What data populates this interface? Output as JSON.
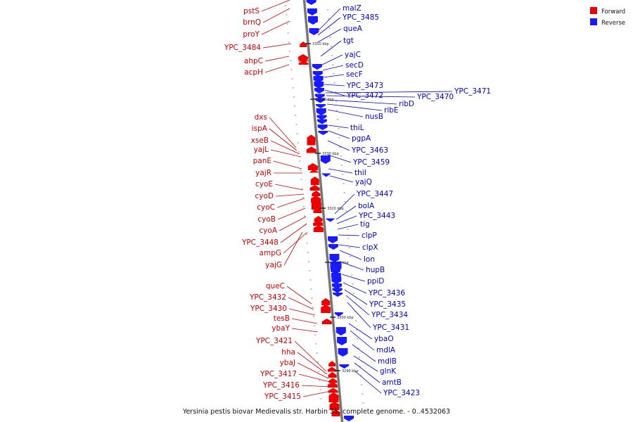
{
  "caption": "Yersinia pestis biovar Medievalis str. Harbin 35, complete genome. - 0..4532063",
  "legend": [
    {
      "label": "Forward",
      "color": "#ee0000"
    },
    {
      "label": "Reverse",
      "color": "#1a1aff"
    }
  ],
  "colors": {
    "forward": "#ee0000",
    "reverse": "#1a1aff",
    "backbone": "#777777",
    "forward_label": "#cc0000",
    "reverse_label": "#0000cc"
  },
  "ticks": [
    "3350 kbp",
    "3340 kbp",
    "3330 kbp",
    "3320 kbp",
    "3310 kbp",
    "3300 kbp",
    "3290 kbp"
  ],
  "forward_genes": [
    "pstS",
    "brnQ",
    "proY",
    "YPC_3484",
    "ahpC",
    "acpH",
    "dxs",
    "ispA",
    "xseB",
    "yajL",
    "panE",
    "yajR",
    "cyoE",
    "cyoD",
    "cyoC",
    "cyoB",
    "cyoA",
    "YPC_3448",
    "ampG",
    "yajG",
    "queC",
    "YPC_3432",
    "YPC_3430",
    "tesB",
    "ybaY",
    "YPC_3421",
    "hha",
    "ybaJ",
    "YPC_3417",
    "YPC_3416",
    "YPC_3415"
  ],
  "reverse_genes": [
    "malZ",
    "YPC_3485",
    "queA",
    "tgt",
    "yajC",
    "secD",
    "secF",
    "YPC_3473",
    "YPC_3472",
    "YPC_3470",
    "YPC_3471",
    "ribD",
    "ribE",
    "nusB",
    "thiL",
    "pgpA",
    "YPC_3463",
    "YPC_3459",
    "thiI",
    "yajQ",
    "YPC_3447",
    "bolA",
    "YPC_3443",
    "tig",
    "clpP",
    "clpX",
    "lon",
    "hupB",
    "ppiD",
    "YPC_3436",
    "YPC_3435",
    "YPC_3434",
    "YPC_3431",
    "ybaO",
    "mdlA",
    "mdlB",
    "glnK",
    "amtB",
    "YPC_3423"
  ]
}
